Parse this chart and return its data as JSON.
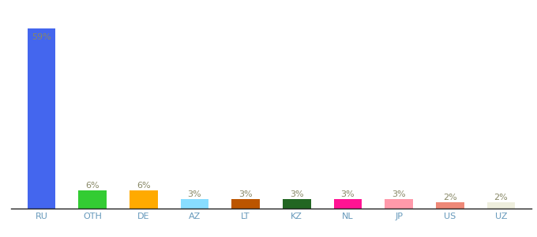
{
  "categories": [
    "RU",
    "OTH",
    "DE",
    "AZ",
    "LT",
    "KZ",
    "NL",
    "JP",
    "US",
    "UZ"
  ],
  "values": [
    59,
    6,
    6,
    3,
    3,
    3,
    3,
    3,
    2,
    2
  ],
  "bar_colors": [
    "#4466ee",
    "#33cc33",
    "#ffaa00",
    "#88ddff",
    "#bb5500",
    "#226622",
    "#ff1493",
    "#ff99aa",
    "#ee8877",
    "#eeeedd"
  ],
  "label_color": "#888866",
  "tick_color": "#6699bb",
  "ylim": [
    0,
    66
  ],
  "label_fontsize": 8,
  "tick_fontsize": 8,
  "bar_width": 0.55,
  "figsize": [
    6.8,
    3.0
  ],
  "dpi": 100
}
